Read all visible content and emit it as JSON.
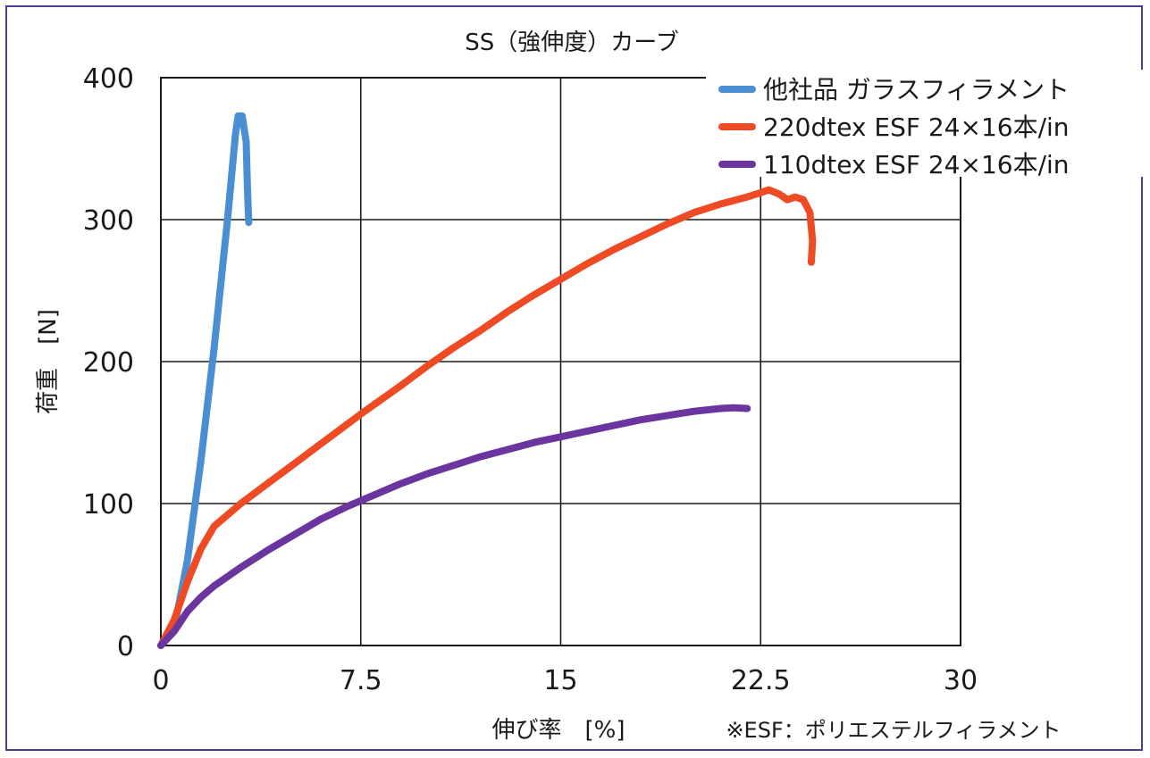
{
  "chart_data": {
    "type": "line",
    "title": "SS（強伸度）カーブ",
    "xlabel": "伸び率　[%]",
    "ylabel": "荷重　[N]",
    "note": "※ESF：ポリエステルフィラメント",
    "xlim": [
      0,
      30
    ],
    "ylim": [
      0,
      400
    ],
    "x_ticks": [
      0,
      7.5,
      15,
      22.5,
      30
    ],
    "x_tick_labels": [
      "0",
      "7.5",
      "15",
      "22.5",
      "30"
    ],
    "y_ticks": [
      0,
      100,
      200,
      300,
      400
    ],
    "y_tick_labels": [
      "0",
      "100",
      "200",
      "300",
      "400"
    ],
    "grid": true,
    "legend_position": "top-right",
    "series": [
      {
        "name": "他社品 ガラスフィラメント",
        "color": "#4a8fd4",
        "points": [
          [
            0,
            0
          ],
          [
            0.5,
            12
          ],
          [
            1,
            60
          ],
          [
            1.5,
            130
          ],
          [
            2,
            210
          ],
          [
            2.5,
            300
          ],
          [
            2.8,
            360
          ],
          [
            2.9,
            373
          ],
          [
            3.05,
            373
          ],
          [
            3.2,
            355
          ],
          [
            3.25,
            320
          ],
          [
            3.3,
            298
          ]
        ]
      },
      {
        "name": "220dtex ESF 24×16本/in",
        "color": "#ee4a24",
        "points": [
          [
            0,
            0
          ],
          [
            0.5,
            18
          ],
          [
            1,
            45
          ],
          [
            1.5,
            68
          ],
          [
            2,
            84
          ],
          [
            3,
            100
          ],
          [
            4,
            114
          ],
          [
            5,
            128
          ],
          [
            6,
            142
          ],
          [
            7.5,
            163
          ],
          [
            9,
            183
          ],
          [
            10,
            197
          ],
          [
            11,
            210
          ],
          [
            12,
            222
          ],
          [
            13,
            235
          ],
          [
            14,
            247
          ],
          [
            15,
            258
          ],
          [
            16,
            269
          ],
          [
            17,
            279
          ],
          [
            18,
            288
          ],
          [
            19,
            297
          ],
          [
            20,
            305
          ],
          [
            21,
            311
          ],
          [
            22,
            316
          ],
          [
            22.5,
            319
          ],
          [
            22.8,
            321
          ],
          [
            23.2,
            318
          ],
          [
            23.5,
            314
          ],
          [
            23.8,
            316
          ],
          [
            24.1,
            314
          ],
          [
            24.35,
            305
          ],
          [
            24.45,
            285
          ],
          [
            24.4,
            270
          ]
        ]
      },
      {
        "name": "110dtex ESF 24×16本/in",
        "color": "#6b35a0",
        "points": [
          [
            0,
            0
          ],
          [
            0.5,
            10
          ],
          [
            1,
            24
          ],
          [
            1.5,
            34
          ],
          [
            2,
            42
          ],
          [
            3,
            55
          ],
          [
            4,
            67
          ],
          [
            5,
            78
          ],
          [
            6,
            89
          ],
          [
            7,
            98
          ],
          [
            7.5,
            102
          ],
          [
            9,
            114
          ],
          [
            10,
            121
          ],
          [
            11,
            127
          ],
          [
            12,
            133
          ],
          [
            13,
            138
          ],
          [
            14,
            143
          ],
          [
            15,
            147
          ],
          [
            16,
            151
          ],
          [
            17,
            155
          ],
          [
            18,
            159
          ],
          [
            19,
            162
          ],
          [
            20,
            165
          ],
          [
            21,
            167
          ],
          [
            21.5,
            167.5
          ],
          [
            22,
            167
          ]
        ]
      }
    ]
  }
}
